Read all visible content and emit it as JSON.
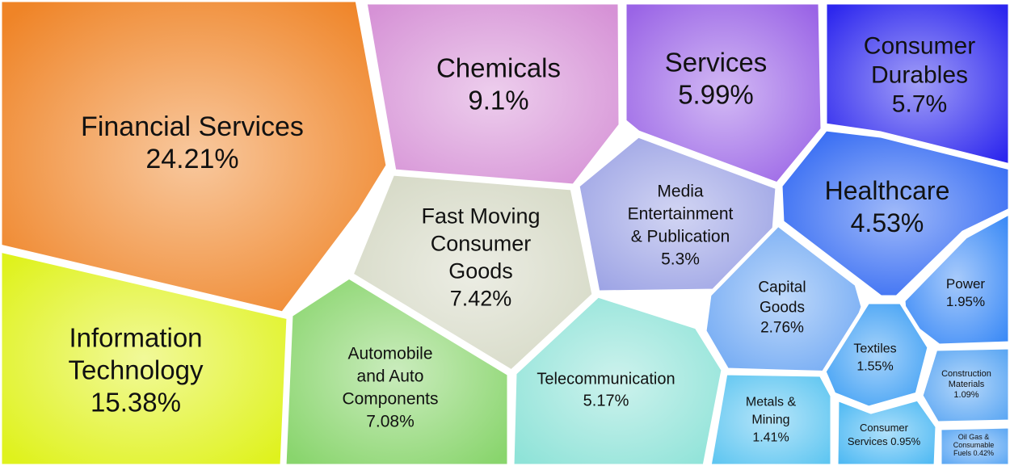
{
  "chart_data": {
    "type": "voronoi-treemap",
    "unit": "%",
    "cells": [
      {
        "name": "Financial Services",
        "value": 24.21,
        "label": "24.21%",
        "color": "#ef8427"
      },
      {
        "name": "Information Technology",
        "value": 15.38,
        "label": "15.38%",
        "color": "#dff21d"
      },
      {
        "name": "Chemicals",
        "value": 9.1,
        "label": "9.1%",
        "color": "#d692d6"
      },
      {
        "name": "Fast Moving Consumer Goods",
        "value": 7.42,
        "label": "7.42%",
        "color": "#d4d8c4"
      },
      {
        "name": "Automobile and Auto Components",
        "value": 7.08,
        "label": "7.08%",
        "color": "#89d56d"
      },
      {
        "name": "Services",
        "value": 5.99,
        "label": "5.99%",
        "color": "#9a64e6"
      },
      {
        "name": "Consumer Durables",
        "value": 5.7,
        "label": "5.7%",
        "color": "#2d27ee"
      },
      {
        "name": "Media Entertainment & Publication",
        "value": 5.3,
        "label": "5.3%",
        "color": "#9aa1e4"
      },
      {
        "name": "Telecommunication",
        "value": 5.17,
        "label": "5.17%",
        "color": "#8fe3d8"
      },
      {
        "name": "Healthcare",
        "value": 4.53,
        "label": "4.53%",
        "color": "#2a63f2"
      },
      {
        "name": "Capital Goods",
        "value": 2.76,
        "label": "2.76%",
        "color": "#6fa8f3"
      },
      {
        "name": "Power",
        "value": 1.95,
        "label": "1.95%",
        "color": "#3b8af6"
      },
      {
        "name": "Textiles",
        "value": 1.55,
        "label": "1.55%",
        "color": "#3c9ef4"
      },
      {
        "name": "Metals & Mining",
        "value": 1.41,
        "label": "1.41%",
        "color": "#5fc6f1"
      },
      {
        "name": "Construction Materials",
        "value": 1.09,
        "label": "1.09%",
        "color": "#5aa6f3"
      },
      {
        "name": "Consumer Services",
        "value": 0.95,
        "label": "0.95%",
        "color": "#4eb9f3"
      },
      {
        "name": "Oil Gas & Consumable Fuels",
        "value": 0.42,
        "label": "0.42%",
        "color": "#5aa6f3"
      }
    ]
  }
}
